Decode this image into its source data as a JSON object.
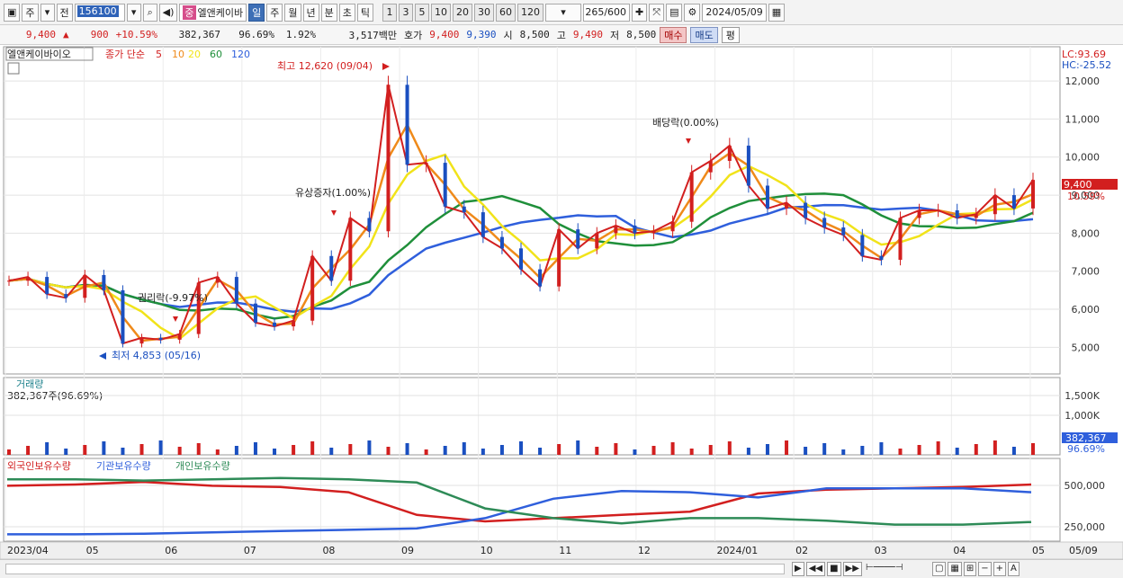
{
  "toolbar": {
    "period_tabs": [
      "주",
      "전"
    ],
    "stock_code": "156100",
    "stock_badge": "중",
    "stock_name": "엘앤케이바",
    "interval_tabs": [
      "일",
      "주",
      "월",
      "년",
      "분",
      "초",
      "틱"
    ],
    "interval_selected": "일",
    "minute_steps": [
      "1",
      "3",
      "5",
      "10",
      "20",
      "30",
      "60",
      "120"
    ],
    "count_display": "265",
    "count_total": "/600",
    "date": "2024/05/09"
  },
  "quote": {
    "price": "9,400",
    "change_arrow": "▲",
    "change": "900",
    "change_pct": "+10.59%",
    "volume": "382,367",
    "volume_ratio": "96.69%",
    "turnover": "1.92%",
    "amount": "3,517백만",
    "ask_label": "호가",
    "ask1": "9,400",
    "ask2": "9,390",
    "open_label": "시",
    "open": "8,500",
    "high_label": "고",
    "high": "9,490",
    "low_label": "저",
    "low": "8,500",
    "buy_label": "매수",
    "sell_label": "매도",
    "avg_label": "평"
  },
  "main_legend": {
    "name": "엘앤케이바이오",
    "ma_label": "종가 단순",
    "ma_periods": [
      "5",
      "10",
      "20",
      "60",
      "120"
    ],
    "ma_colors": [
      "#d21f1f",
      "#ef8a1a",
      "#f1e31a",
      "#1f8f3a",
      "#2f5fdc"
    ]
  },
  "corner": {
    "lc": "LC:93.69",
    "hc": "HC:-25.52"
  },
  "annotations": {
    "high": "최고 12,620 (09/04)",
    "low": "최저 4,853 (05/16)",
    "rights": "유상증자(1.00%)",
    "ex_rights": "권리락(-9.97%)",
    "dividend": "배당락(0.00%)"
  },
  "last_price_tag": {
    "price": "9,400",
    "pct": "10.59%"
  },
  "volume_panel": {
    "title": "거래량",
    "value": "382,367주(96.69%)",
    "tag_value": "382,367",
    "tag_pct": "96.69%"
  },
  "holding_panel": {
    "series": [
      "외국인보유수량",
      "기관보유수량",
      "개인보유수량"
    ],
    "colors": [
      "#d21f1f",
      "#2f5fdc",
      "#2e8b57"
    ]
  },
  "x_axis": {
    "labels": [
      "2023/04",
      "05",
      "06",
      "07",
      "08",
      "09",
      "10",
      "11",
      "12",
      "2024/01",
      "02",
      "03",
      "04",
      "05"
    ],
    "end_label": "05/09"
  },
  "chart_data": [
    {
      "type": "line",
      "title": "엘앤케이바이오",
      "y_ticks": [
        5000,
        6000,
        7000,
        8000,
        9000,
        10000,
        11000,
        12000
      ],
      "ylim": [
        4300,
        12900
      ],
      "months": [
        "2023/04",
        "05",
        "06",
        "07",
        "08",
        "09",
        "10",
        "11",
        "12",
        "2024/01",
        "02",
        "03",
        "04",
        "05"
      ],
      "series": [
        {
          "name": "종가",
          "values": [
            6750,
            6850,
            6400,
            6300,
            6900,
            6500,
            5100,
            5250,
            5200,
            5350,
            6700,
            6850,
            6150,
            5650,
            5550,
            5700,
            7400,
            6750,
            8400,
            8050,
            11900,
            9800,
            9850,
            8700,
            8550,
            7900,
            7600,
            7050,
            6600,
            8100,
            7600,
            8000,
            8200,
            8000,
            8050,
            8300,
            9600,
            9900,
            10300,
            9250,
            8650,
            8800,
            8400,
            8150,
            7950,
            7400,
            7300,
            8400,
            8600,
            8600,
            8400,
            8500,
            9000,
            8650,
            9400
          ]
        }
      ]
    },
    {
      "type": "bar",
      "title": "거래량",
      "y_ticks": [
        "1,000K",
        "1,500K"
      ],
      "last_value": 382367
    },
    {
      "type": "line",
      "title": "보유수량",
      "y_ticks": [
        "250,000",
        "500,000"
      ]
    }
  ]
}
